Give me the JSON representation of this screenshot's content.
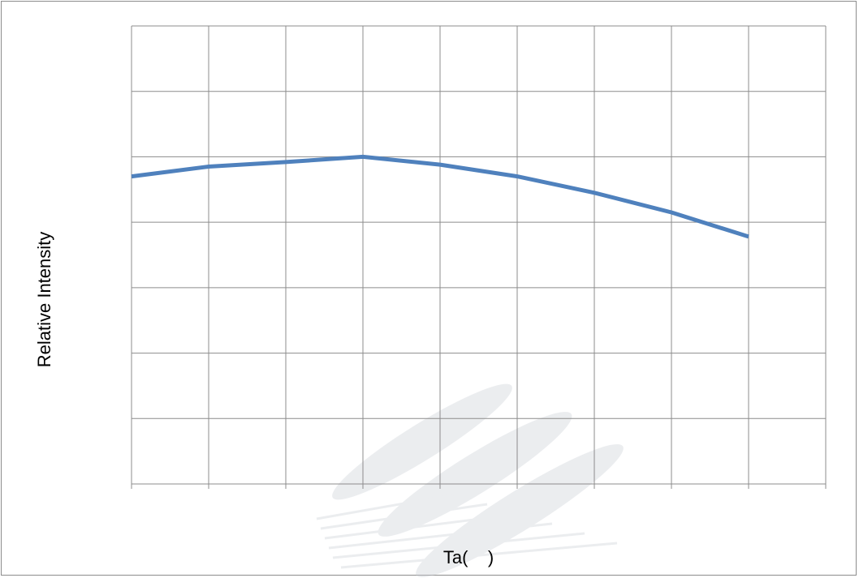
{
  "chart_data": {
    "type": "line",
    "title": "",
    "xlabel": "Ta(    )",
    "ylabel": "Relative Intensity",
    "x": [
      0,
      1,
      2,
      3,
      4,
      5,
      6,
      7,
      8
    ],
    "xlim": [
      0,
      9
    ],
    "ylim": [
      0,
      7
    ],
    "grid": true,
    "tick_labels_visible": false,
    "series": [
      {
        "values": [
          4.7,
          4.85,
          4.92,
          5.0,
          4.88,
          4.7,
          4.45,
          4.15,
          3.78
        ],
        "color": "#4f81bd"
      }
    ]
  },
  "colors": {
    "grid": "#8c8c8c",
    "frame": "#8c8c8c",
    "line": "#4f81bd",
    "watermark": "#c8ccd4"
  }
}
